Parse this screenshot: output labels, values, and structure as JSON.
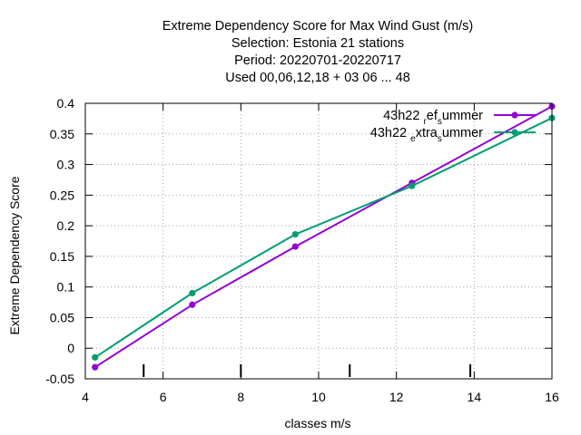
{
  "chart_data": {
    "type": "line",
    "title_lines": [
      "Extreme Dependency Score  for Max Wind Gust (m/s)",
      "Selection: Estonia      21 stations",
      "Period: 20220701-20220717",
      "Used  00,06,12,18  + 03 06 ... 48"
    ],
    "xlabel": "classes m/s",
    "ylabel": "Extreme Dependency Score",
    "xlim": [
      4,
      16
    ],
    "ylim": [
      -0.05,
      0.4
    ],
    "xticks": [
      4,
      6,
      8,
      10,
      12,
      14,
      16
    ],
    "yticks": [
      -0.05,
      0,
      0.05,
      0.1,
      0.15,
      0.2,
      0.25,
      0.3,
      0.35,
      0.4
    ],
    "xtick_labels": [
      "4",
      "6",
      "8",
      "10",
      "12",
      "14",
      "16"
    ],
    "ytick_labels": [
      "-0.05",
      "0",
      "0.05",
      "0.1",
      "0.15",
      "0.2",
      "0.25",
      "0.3",
      "0.35",
      "0.4"
    ],
    "grid": true,
    "legend_position": "top-right",
    "class_markers": [
      5.5,
      8,
      10.8,
      13.9
    ],
    "series": [
      {
        "name": "43h22_ref_summer",
        "legend_parts": {
          "base": "43h22 ",
          "sub1": "r",
          "mid": "ef",
          "sub2": "s",
          "end": "ummer"
        },
        "color": "#9400d3",
        "x": [
          4.25,
          6.75,
          9.4,
          12.4,
          16.0
        ],
        "y": [
          -0.031,
          0.071,
          0.166,
          0.27,
          0.395
        ]
      },
      {
        "name": "43h22_extra_summer",
        "legend_parts": {
          "base": "43h22 ",
          "sub1": "e",
          "mid": "xtra",
          "sub2": "s",
          "end": "ummer"
        },
        "color": "#009e73",
        "x": [
          4.25,
          6.75,
          9.4,
          12.4,
          16.0
        ],
        "y": [
          -0.015,
          0.09,
          0.186,
          0.265,
          0.376
        ]
      }
    ]
  }
}
